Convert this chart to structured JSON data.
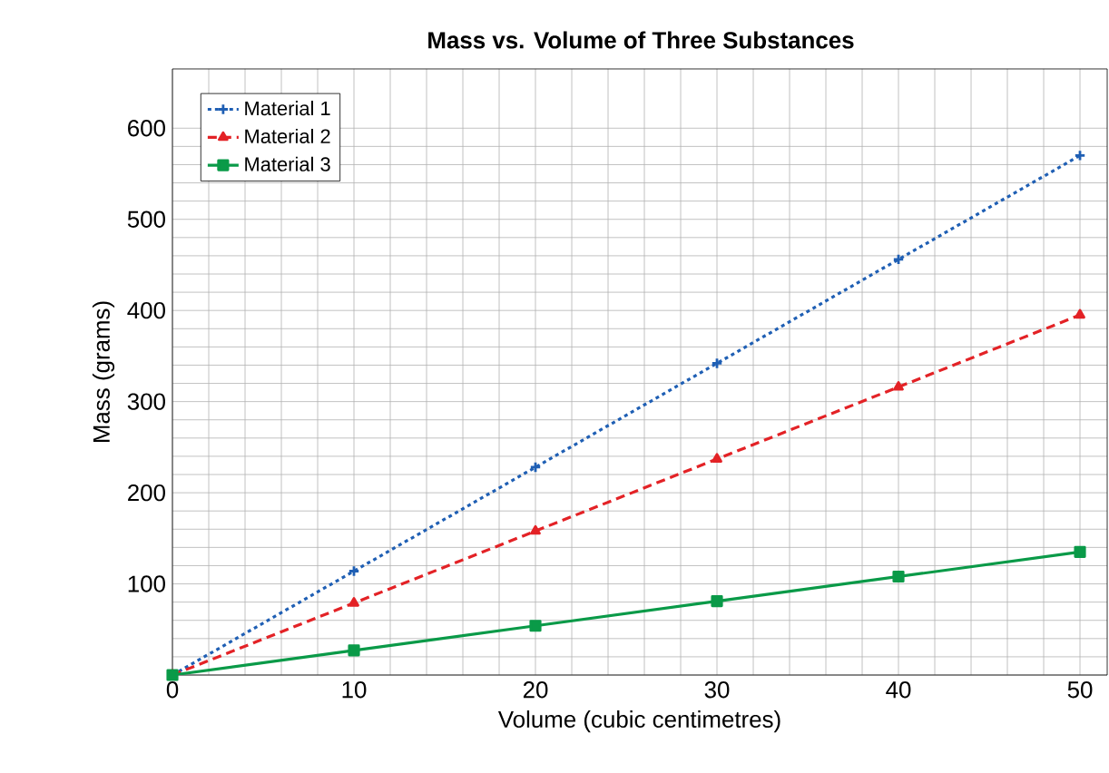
{
  "chart_data": {
    "type": "line",
    "title": "Mass vs. Volume of Three Substances",
    "xlabel": "Volume (cubic centimetres)",
    "ylabel": "Mass (grams)",
    "x": [
      0,
      10,
      20,
      30,
      40,
      50
    ],
    "series": [
      {
        "name": "Material 1",
        "color": "#1f5fb4",
        "marker": "cross",
        "line_style": "dotted",
        "values": [
          0,
          114,
          228,
          342,
          456,
          570
        ]
      },
      {
        "name": "Material 2",
        "color": "#e32226",
        "marker": "triangle",
        "line_style": "dashed",
        "values": [
          0,
          79,
          158,
          237,
          316,
          395
        ]
      },
      {
        "name": "Material 3",
        "color": "#0a9a48",
        "marker": "square",
        "line_style": "solid",
        "values": [
          0,
          27,
          54,
          81,
          108,
          135
        ]
      }
    ],
    "xlim": [
      0,
      51.5
    ],
    "ylim": [
      0,
      665
    ],
    "xticks": [
      0,
      10,
      20,
      30,
      40,
      50
    ],
    "yticks": [
      {
        "value": 0,
        "label": null
      },
      100,
      200,
      300,
      400,
      500,
      600
    ],
    "grid": true,
    "legend": "top left"
  }
}
